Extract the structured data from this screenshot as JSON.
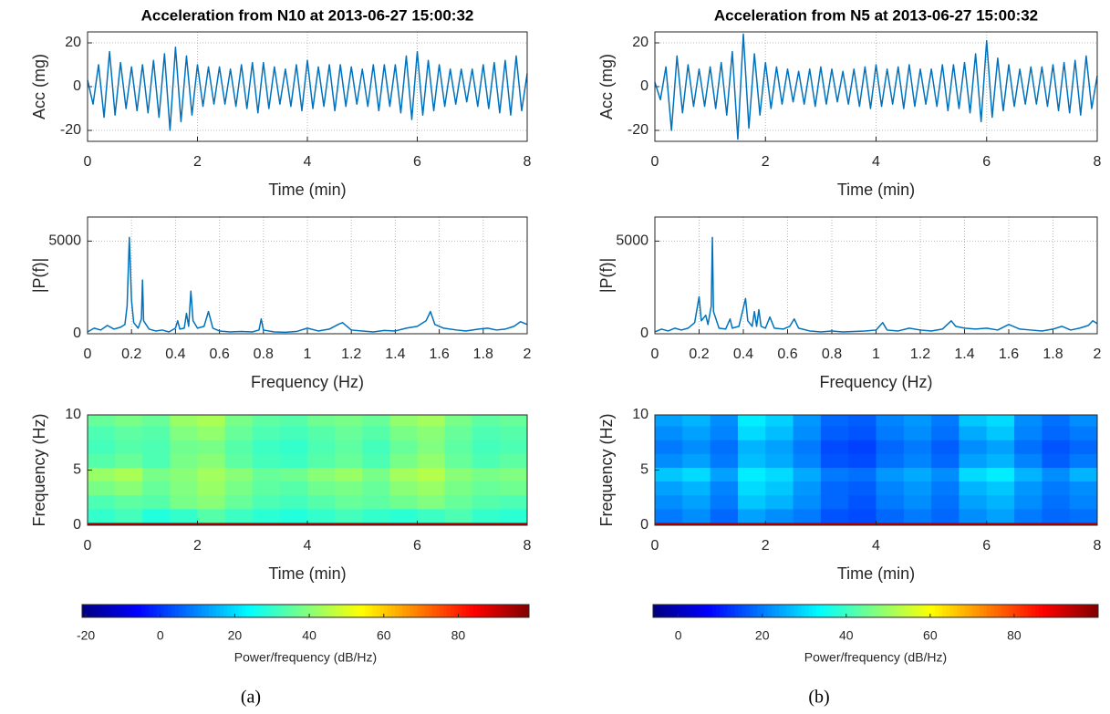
{
  "chart_data": [
    {
      "type": "line",
      "title": "Acceleration from N10 at 2013-06-27 15:00:32",
      "xlabel": "Time (min)",
      "ylabel": "Acc (mg)",
      "xlim": [
        0,
        8
      ],
      "ylim": [
        -25,
        25
      ],
      "xticks": [
        0,
        2,
        4,
        6,
        8
      ],
      "yticks": [
        -20,
        0,
        20
      ],
      "grid": true,
      "x": [
        0,
        0.1,
        0.2,
        0.3,
        0.4,
        0.5,
        0.6,
        0.7,
        0.8,
        0.9,
        1,
        1.1,
        1.2,
        1.3,
        1.4,
        1.5,
        1.6,
        1.7,
        1.8,
        1.9,
        2,
        2.1,
        2.2,
        2.3,
        2.4,
        2.5,
        2.6,
        2.7,
        2.8,
        2.9,
        3,
        3.1,
        3.2,
        3.3,
        3.4,
        3.5,
        3.6,
        3.7,
        3.8,
        3.9,
        4,
        4.1,
        4.2,
        4.3,
        4.4,
        4.5,
        4.6,
        4.7,
        4.8,
        4.9,
        5,
        5.1,
        5.2,
        5.3,
        5.4,
        5.5,
        5.6,
        5.7,
        5.8,
        5.9,
        6,
        6.1,
        6.2,
        6.3,
        6.4,
        6.5,
        6.6,
        6.7,
        6.8,
        6.9,
        7,
        7.1,
        7.2,
        7.3,
        7.4,
        7.5,
        7.6,
        7.7,
        7.8,
        7.9,
        8
      ],
      "series": [
        {
          "color": "#0072bd",
          "values": [
            3,
            -8,
            10,
            -14,
            16,
            -13,
            11,
            -10,
            9,
            -11,
            10,
            -12,
            12,
            -14,
            15,
            -20,
            18,
            -16,
            14,
            -13,
            10,
            -9,
            9,
            -8,
            9,
            -8,
            8,
            -9,
            10,
            -10,
            11,
            -12,
            11,
            -10,
            9,
            -8,
            8,
            -9,
            10,
            -11,
            12,
            -10,
            9,
            -9,
            10,
            -11,
            10,
            -9,
            9,
            -8,
            8,
            -9,
            10,
            -11,
            10,
            -9,
            10,
            -12,
            14,
            -15,
            16,
            -13,
            12,
            -11,
            10,
            -9,
            8,
            -8,
            8,
            -7,
            8,
            -9,
            10,
            -10,
            11,
            -12,
            12,
            -13,
            14,
            -11,
            6
          ]
        }
      ]
    },
    {
      "type": "line",
      "xlabel": "Frequency (Hz)",
      "ylabel": "|P(f)|",
      "xlim": [
        0,
        2
      ],
      "ylim": [
        0,
        6300
      ],
      "xticks": [
        0,
        0.2,
        0.4,
        0.6,
        0.8,
        1,
        1.2,
        1.4,
        1.6,
        1.8,
        2
      ],
      "yticks": [
        0,
        5000
      ],
      "grid": true,
      "x": [
        0,
        0.03,
        0.06,
        0.09,
        0.12,
        0.15,
        0.17,
        0.18,
        0.19,
        0.2,
        0.21,
        0.23,
        0.245,
        0.25,
        0.255,
        0.28,
        0.31,
        0.34,
        0.37,
        0.4,
        0.41,
        0.42,
        0.44,
        0.45,
        0.46,
        0.47,
        0.48,
        0.5,
        0.53,
        0.55,
        0.57,
        0.6,
        0.65,
        0.7,
        0.75,
        0.78,
        0.79,
        0.8,
        0.85,
        0.9,
        0.95,
        1,
        1.05,
        1.1,
        1.14,
        1.16,
        1.2,
        1.25,
        1.3,
        1.35,
        1.4,
        1.45,
        1.5,
        1.54,
        1.56,
        1.58,
        1.62,
        1.68,
        1.72,
        1.78,
        1.82,
        1.86,
        1.9,
        1.94,
        1.97,
        2
      ],
      "series": [
        {
          "color": "#0072bd",
          "values": [
            100,
            300,
            200,
            450,
            250,
            350,
            500,
            1500,
            5200,
            1800,
            600,
            300,
            800,
            2900,
            700,
            250,
            150,
            200,
            100,
            300,
            700,
            250,
            300,
            1100,
            400,
            2300,
            700,
            300,
            400,
            1200,
            300,
            150,
            100,
            120,
            100,
            200,
            800,
            200,
            100,
            80,
            120,
            300,
            150,
            250,
            500,
            600,
            200,
            150,
            100,
            180,
            150,
            300,
            400,
            700,
            1200,
            500,
            300,
            200,
            150,
            250,
            300,
            200,
            250,
            400,
            650,
            500
          ]
        }
      ]
    },
    {
      "type": "heatmap",
      "xlabel": "Time (min)",
      "ylabel": "Frequency (Hz)",
      "xlim": [
        0,
        8
      ],
      "ylim": [
        0,
        10
      ],
      "xticks": [
        0,
        2,
        4,
        6,
        8
      ],
      "yticks": [
        0,
        5,
        10
      ],
      "x_edges": [
        0,
        0.5,
        1,
        1.5,
        2,
        2.5,
        3,
        3.5,
        4,
        4.5,
        5,
        5.5,
        6,
        6.5,
        7,
        7.5,
        8
      ],
      "y_edges": [
        0,
        0.25,
        1.5,
        2.75,
        4,
        5.25,
        6.5,
        7.75,
        9,
        10
      ],
      "values": [
        [
          95,
          95,
          95,
          95,
          95,
          95,
          95,
          95,
          95,
          95,
          95,
          95,
          95,
          95,
          95,
          95
        ],
        [
          30,
          32,
          28,
          30,
          34,
          31,
          29,
          28,
          30,
          32,
          30,
          29,
          31,
          33,
          30,
          29
        ],
        [
          33,
          35,
          34,
          38,
          40,
          36,
          33,
          32,
          34,
          36,
          35,
          37,
          39,
          36,
          34,
          33
        ],
        [
          38,
          40,
          36,
          39,
          42,
          38,
          35,
          34,
          37,
          38,
          36,
          40,
          42,
          38,
          36,
          37
        ],
        [
          42,
          44,
          38,
          40,
          43,
          40,
          36,
          37,
          40,
          42,
          38,
          43,
          45,
          40,
          38,
          39
        ],
        [
          34,
          36,
          33,
          38,
          40,
          35,
          32,
          31,
          34,
          36,
          33,
          38,
          41,
          36,
          33,
          35
        ],
        [
          32,
          34,
          33,
          37,
          38,
          34,
          31,
          30,
          33,
          35,
          32,
          36,
          39,
          35,
          32,
          33
        ],
        [
          33,
          35,
          34,
          39,
          41,
          36,
          33,
          32,
          34,
          36,
          34,
          38,
          40,
          36,
          33,
          34
        ],
        [
          36,
          38,
          36,
          42,
          44,
          38,
          35,
          34,
          37,
          38,
          36,
          41,
          43,
          38,
          35,
          36
        ]
      ],
      "clim": [
        -21,
        99
      ],
      "cticks": [
        -20,
        0,
        20,
        40,
        60,
        80
      ],
      "clabel": "Power/frequency (dB/Hz)",
      "colormap": "jet"
    },
    {
      "type": "line",
      "title": "Acceleration from N5 at 2013-06-27 15:00:32",
      "xlabel": "Time (min)",
      "ylabel": "Acc (mg)",
      "xlim": [
        0,
        8
      ],
      "ylim": [
        -25,
        25
      ],
      "xticks": [
        0,
        2,
        4,
        6,
        8
      ],
      "yticks": [
        -20,
        0,
        20
      ],
      "grid": true,
      "x": [
        0,
        0.1,
        0.2,
        0.3,
        0.4,
        0.5,
        0.6,
        0.7,
        0.8,
        0.9,
        1,
        1.1,
        1.2,
        1.3,
        1.4,
        1.5,
        1.6,
        1.7,
        1.8,
        1.9,
        2,
        2.1,
        2.2,
        2.3,
        2.4,
        2.5,
        2.6,
        2.7,
        2.8,
        2.9,
        3,
        3.1,
        3.2,
        3.3,
        3.4,
        3.5,
        3.6,
        3.7,
        3.8,
        3.9,
        4,
        4.1,
        4.2,
        4.3,
        4.4,
        4.5,
        4.6,
        4.7,
        4.8,
        4.9,
        5,
        5.1,
        5.2,
        5.3,
        5.4,
        5.5,
        5.6,
        5.7,
        5.8,
        5.9,
        6,
        6.1,
        6.2,
        6.3,
        6.4,
        6.5,
        6.6,
        6.7,
        6.8,
        6.9,
        7,
        7.1,
        7.2,
        7.3,
        7.4,
        7.5,
        7.6,
        7.7,
        7.8,
        7.9,
        8
      ],
      "series": [
        {
          "color": "#0072bd",
          "values": [
            2,
            -6,
            9,
            -20,
            14,
            -12,
            10,
            -9,
            8,
            -9,
            9,
            -10,
            11,
            -13,
            16,
            -24,
            24,
            -19,
            15,
            -13,
            11,
            -10,
            9,
            -8,
            8,
            -7,
            7,
            -8,
            8,
            -9,
            9,
            -8,
            8,
            -7,
            7,
            -8,
            8,
            -9,
            9,
            -10,
            10,
            -9,
            8,
            -8,
            9,
            -10,
            10,
            -9,
            8,
            -8,
            8,
            -9,
            10,
            -11,
            10,
            -10,
            11,
            -12,
            15,
            -16,
            21,
            -14,
            13,
            -11,
            10,
            -9,
            8,
            -8,
            9,
            -8,
            9,
            -9,
            10,
            -11,
            11,
            -12,
            12,
            -13,
            14,
            -10,
            5
          ]
        }
      ]
    },
    {
      "type": "line",
      "xlabel": "Frequency (Hz)",
      "ylabel": "|P(f)|",
      "xlim": [
        0,
        2
      ],
      "ylim": [
        0,
        6300
      ],
      "xticks": [
        0,
        0.2,
        0.4,
        0.6,
        0.8,
        1,
        1.2,
        1.4,
        1.6,
        1.8,
        2
      ],
      "yticks": [
        0,
        5000
      ],
      "grid": true,
      "x": [
        0,
        0.03,
        0.06,
        0.09,
        0.12,
        0.15,
        0.18,
        0.2,
        0.21,
        0.23,
        0.24,
        0.255,
        0.26,
        0.265,
        0.29,
        0.32,
        0.34,
        0.35,
        0.38,
        0.41,
        0.42,
        0.44,
        0.45,
        0.46,
        0.47,
        0.48,
        0.5,
        0.52,
        0.54,
        0.58,
        0.61,
        0.63,
        0.65,
        0.7,
        0.75,
        0.8,
        0.85,
        0.9,
        0.95,
        1,
        1.03,
        1.05,
        1.1,
        1.15,
        1.2,
        1.25,
        1.3,
        1.34,
        1.36,
        1.4,
        1.45,
        1.5,
        1.55,
        1.6,
        1.65,
        1.7,
        1.75,
        1.8,
        1.84,
        1.88,
        1.92,
        1.96,
        1.98,
        2
      ],
      "series": [
        {
          "color": "#0072bd",
          "values": [
            100,
            250,
            150,
            300,
            200,
            300,
            600,
            2000,
            700,
            1000,
            500,
            1500,
            5200,
            1200,
            300,
            250,
            800,
            300,
            400,
            1900,
            700,
            400,
            1200,
            400,
            1300,
            400,
            300,
            900,
            300,
            250,
            400,
            800,
            300,
            150,
            100,
            150,
            100,
            120,
            150,
            200,
            600,
            200,
            150,
            300,
            200,
            150,
            250,
            700,
            400,
            300,
            250,
            300,
            200,
            500,
            250,
            200,
            150,
            250,
            400,
            200,
            300,
            450,
            700,
            550
          ]
        }
      ]
    },
    {
      "type": "heatmap",
      "xlabel": "Time (min)",
      "ylabel": "Frequency (Hz)",
      "xlim": [
        0,
        8
      ],
      "ylim": [
        0,
        10
      ],
      "xticks": [
        0,
        2,
        4,
        6,
        8
      ],
      "yticks": [
        0,
        5,
        10
      ],
      "x_edges": [
        0,
        0.5,
        1,
        1.5,
        2,
        2.5,
        3,
        3.5,
        4,
        4.5,
        5,
        5.5,
        6,
        6.5,
        7,
        7.5,
        8
      ],
      "y_edges": [
        0,
        0.25,
        1.5,
        2.75,
        4,
        5.25,
        6.5,
        7.75,
        9,
        10
      ],
      "values": [
        [
          95,
          95,
          95,
          95,
          95,
          95,
          95,
          95,
          95,
          95,
          95,
          95,
          95,
          95,
          95,
          95
        ],
        [
          20,
          22,
          18,
          24,
          22,
          20,
          16,
          15,
          18,
          20,
          18,
          22,
          24,
          20,
          18,
          19
        ],
        [
          22,
          24,
          20,
          28,
          26,
          22,
          18,
          16,
          20,
          22,
          19,
          24,
          26,
          22,
          19,
          21
        ],
        [
          24,
          26,
          21,
          30,
          28,
          23,
          18,
          17,
          21,
          23,
          20,
          26,
          28,
          23,
          20,
          22
        ],
        [
          28,
          30,
          24,
          32,
          30,
          25,
          20,
          19,
          23,
          25,
          22,
          30,
          32,
          26,
          22,
          26
        ],
        [
          22,
          24,
          20,
          27,
          25,
          21,
          16,
          15,
          19,
          21,
          18,
          24,
          26,
          21,
          17,
          20
        ],
        [
          20,
          22,
          19,
          26,
          24,
          20,
          15,
          14,
          18,
          20,
          17,
          22,
          24,
          19,
          16,
          18
        ],
        [
          22,
          24,
          21,
          30,
          27,
          22,
          17,
          16,
          20,
          22,
          19,
          25,
          28,
          21,
          18,
          20
        ],
        [
          24,
          26,
          22,
          32,
          29,
          23,
          18,
          17,
          21,
          23,
          20,
          28,
          30,
          22,
          19,
          22
        ]
      ],
      "clim": [
        -6,
        100
      ],
      "cticks": [
        0,
        20,
        40,
        60,
        80
      ],
      "clabel": "Power/frequency (dB/Hz)",
      "colormap": "jet"
    }
  ],
  "captions": [
    "(a)",
    "(b)"
  ]
}
